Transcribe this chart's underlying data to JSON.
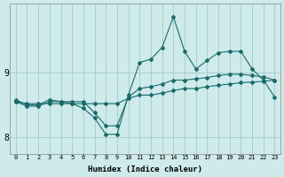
{
  "xlabel": "Humidex (Indice chaleur)",
  "ylabel": "",
  "background_color": "#ceeaea",
  "grid_color": "#aacece",
  "line_color": "#1a6b6b",
  "x_values": [
    0,
    1,
    2,
    3,
    4,
    5,
    6,
    7,
    8,
    9,
    10,
    11,
    12,
    13,
    14,
    15,
    16,
    17,
    18,
    19,
    20,
    21,
    22,
    23
  ],
  "line_min": [
    8.55,
    8.52,
    8.52,
    8.52,
    8.52,
    8.52,
    8.52,
    8.52,
    8.52,
    8.52,
    8.6,
    8.65,
    8.65,
    8.68,
    8.72,
    8.75,
    8.75,
    8.78,
    8.8,
    8.82,
    8.84,
    8.85,
    8.86,
    8.88
  ],
  "line_mid": [
    8.55,
    8.48,
    8.48,
    8.55,
    8.55,
    8.55,
    8.55,
    8.38,
    8.18,
    8.18,
    8.62,
    8.75,
    8.78,
    8.82,
    8.88,
    8.88,
    8.9,
    8.92,
    8.95,
    8.97,
    8.97,
    8.95,
    8.93,
    8.88
  ],
  "line_max": [
    8.58,
    8.5,
    8.5,
    8.58,
    8.55,
    8.52,
    8.45,
    8.3,
    8.05,
    8.05,
    8.65,
    9.15,
    9.2,
    9.38,
    9.85,
    9.32,
    9.05,
    9.18,
    9.3,
    9.32,
    9.32,
    9.05,
    8.88,
    8.62
  ],
  "ylim": [
    7.75,
    10.05
  ],
  "yticks": [
    8,
    9
  ],
  "xlim": [
    -0.5,
    23.5
  ],
  "figsize": [
    3.2,
    2.0
  ],
  "dpi": 100
}
